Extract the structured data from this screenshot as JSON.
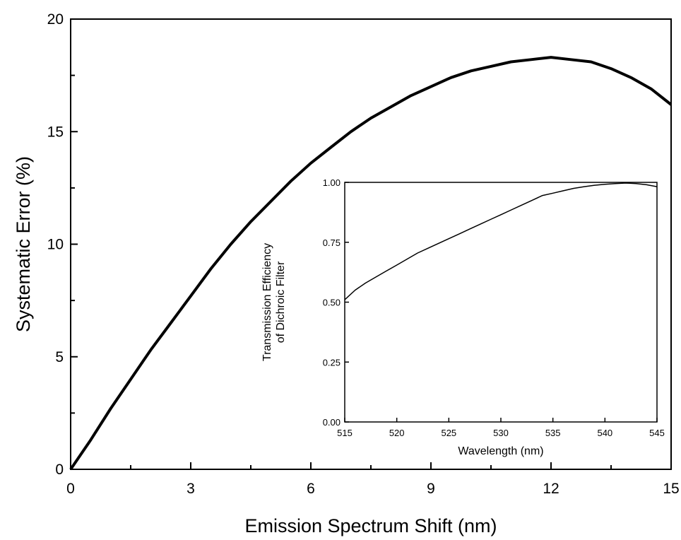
{
  "chart_data": [
    {
      "type": "line",
      "title": "",
      "xlabel": "Emission Spectrum Shift (nm)",
      "ylabel": "Systematic Error (%)",
      "xlim": [
        0,
        15
      ],
      "ylim": [
        0,
        20
      ],
      "x_ticks": [
        0,
        3,
        6,
        9,
        12,
        15
      ],
      "x_tick_labels": [
        "0",
        "3",
        "6",
        "9",
        "12",
        "15"
      ],
      "y_ticks": [
        0,
        5,
        10,
        15,
        20
      ],
      "y_tick_labels": [
        "0",
        "5",
        "10",
        "15",
        "20"
      ],
      "grid": false,
      "series": [
        {
          "x": [
            0,
            0.5,
            1,
            1.5,
            2,
            2.5,
            3,
            3.5,
            4,
            4.5,
            5,
            5.5,
            6,
            6.5,
            7,
            7.5,
            8,
            8.5,
            9,
            9.5,
            10,
            10.5,
            11,
            11.5,
            12,
            12.5,
            13,
            13.5,
            14,
            14.5,
            15
          ],
          "y": [
            0,
            1.3,
            2.7,
            4.0,
            5.3,
            6.5,
            7.7,
            8.9,
            10.0,
            11.0,
            11.9,
            12.8,
            13.6,
            14.3,
            15.0,
            15.6,
            16.1,
            16.6,
            17.0,
            17.4,
            17.7,
            17.9,
            18.1,
            18.2,
            18.3,
            18.2,
            18.1,
            17.8,
            17.4,
            16.9,
            16.2
          ]
        }
      ]
    },
    {
      "type": "line",
      "title": "",
      "xlabel": "Wavelength (nm)",
      "ylabel": "Transmission Efficiency of Dichroic Filter",
      "ylabel_lines": [
        "Transmission Efficiency",
        "of Dichroic Filter"
      ],
      "xlim": [
        515,
        545
      ],
      "ylim": [
        0,
        1
      ],
      "x_ticks": [
        515,
        520,
        525,
        530,
        535,
        540,
        545
      ],
      "x_tick_labels": [
        "515",
        "520",
        "525",
        "530",
        "535",
        "540",
        "545"
      ],
      "y_ticks": [
        0,
        0.25,
        0.5,
        0.75,
        1
      ],
      "y_tick_labels": [
        "0.00",
        "0.25",
        "0.50",
        "0.75",
        "1.00"
      ],
      "grid": false,
      "series": [
        {
          "x": [
            515,
            516,
            517,
            518,
            519,
            520,
            521,
            522,
            523,
            524,
            525,
            526,
            527,
            528,
            529,
            530,
            531,
            532,
            533,
            534,
            535,
            536,
            537,
            538,
            539,
            540,
            541,
            542,
            543,
            544,
            545
          ],
          "y": [
            0.51,
            0.55,
            0.58,
            0.605,
            0.63,
            0.655,
            0.68,
            0.705,
            0.725,
            0.745,
            0.765,
            0.785,
            0.805,
            0.825,
            0.845,
            0.865,
            0.885,
            0.905,
            0.925,
            0.945,
            0.955,
            0.965,
            0.975,
            0.982,
            0.988,
            0.992,
            0.995,
            0.997,
            0.995,
            0.99,
            0.982
          ]
        }
      ]
    }
  ]
}
